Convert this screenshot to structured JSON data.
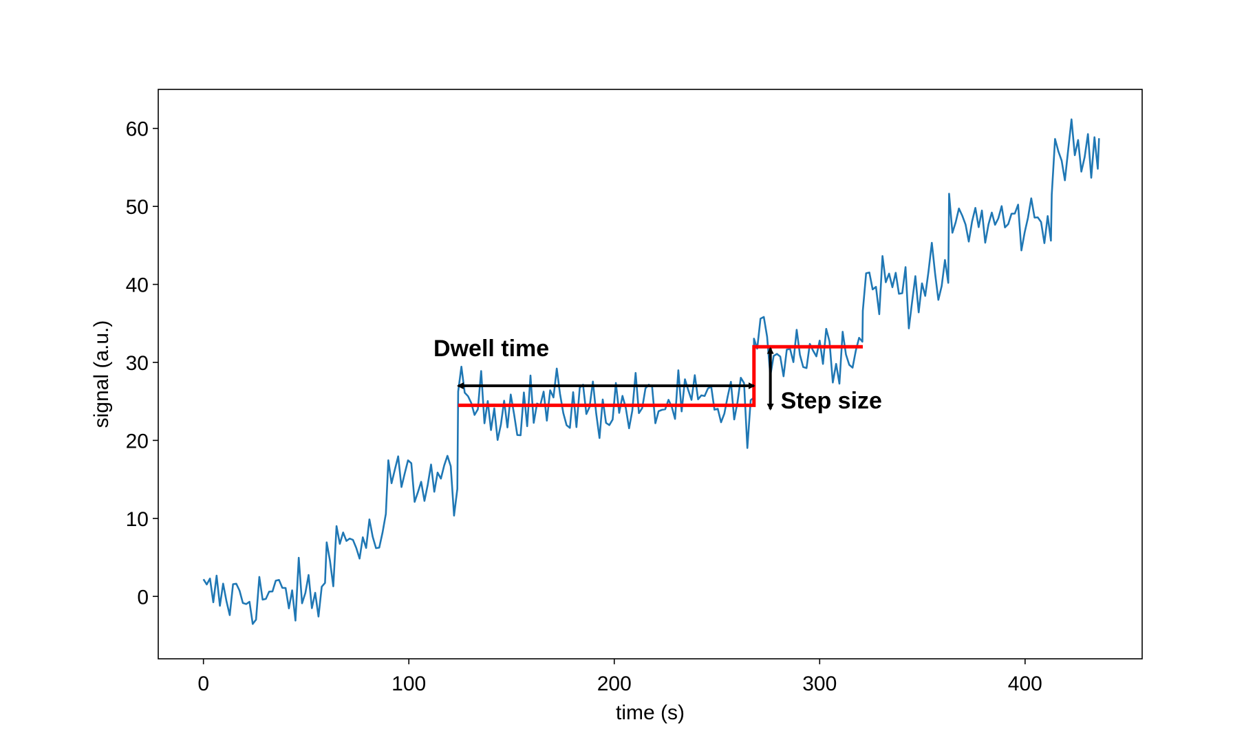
{
  "chart_data": {
    "type": "line",
    "title": "",
    "xlabel": "time (s)",
    "ylabel": "signal (a.u.)",
    "xlim": [
      -22,
      457
    ],
    "ylim": [
      -8,
      65
    ],
    "xticks": [
      0,
      100,
      200,
      300,
      400
    ],
    "yticks": [
      0,
      10,
      20,
      30,
      40,
      50,
      60
    ],
    "grid": false,
    "legend": "none",
    "series": [
      {
        "color": "#1f77b4",
        "levels": [
          {
            "t_start": 0,
            "t_end": 60,
            "mean": 0
          },
          {
            "t_start": 60,
            "t_end": 90,
            "mean": 7
          },
          {
            "t_start": 90,
            "t_end": 124,
            "mean": 15
          },
          {
            "t_start": 124,
            "t_end": 268,
            "mean": 24.5
          },
          {
            "t_start": 268,
            "t_end": 321,
            "mean": 32
          },
          {
            "t_start": 321,
            "t_end": 363,
            "mean": 40
          },
          {
            "t_start": 363,
            "t_end": 413,
            "mean": 48
          },
          {
            "t_start": 413,
            "t_end": 436,
            "mean": 56.5
          }
        ],
        "noise_amplitude": 2.2
      }
    ],
    "step_fit": {
      "color": "#ff0000",
      "points": [
        [
          124,
          24.5
        ],
        [
          268,
          24.5
        ],
        [
          268,
          32
        ],
        [
          321,
          32
        ]
      ]
    },
    "annotations": [
      {
        "id": "dwell",
        "text": "Dwell time",
        "arrow_x": [
          124,
          268
        ],
        "arrow_y": 27,
        "text_x": 112,
        "text_y": 30.8
      },
      {
        "id": "step",
        "text": "Step size",
        "arrow_x": 276,
        "arrow_y": [
          24,
          31.8
        ],
        "text_x": 281,
        "text_y": 24.1
      }
    ]
  }
}
